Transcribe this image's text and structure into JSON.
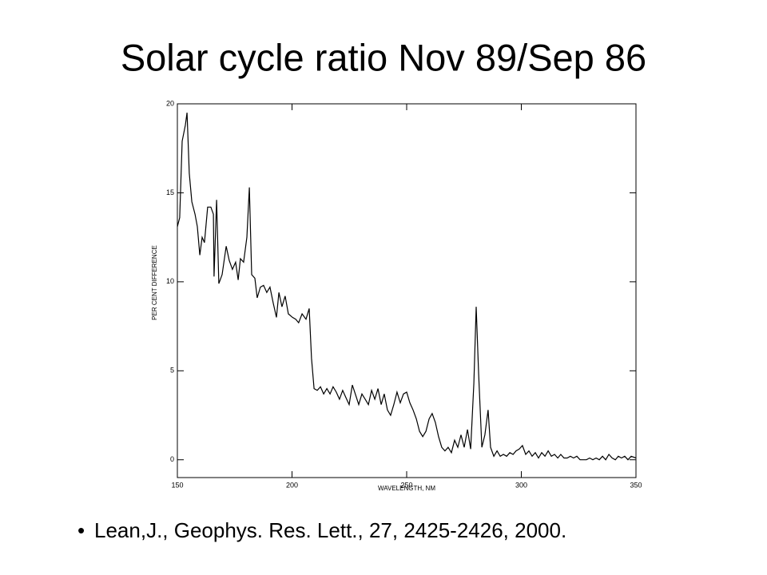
{
  "chart_data": {
    "type": "line",
    "title": "Solar cycle ratio Nov 89/Sep 86",
    "x_label": "WAVELENGTH, NM",
    "y_label": "PER CENT DIFFERENCE",
    "footnote": "Lean,J., Geophys. Res. Lett., 27, 2425-2426, 2000.",
    "xlim": [
      150,
      350
    ],
    "ylim": [
      -1,
      20
    ],
    "xticks": [
      150,
      200,
      250,
      300,
      350
    ],
    "yticks": [
      0,
      5,
      10,
      15,
      20
    ],
    "color": "#000000",
    "x": [
      150,
      151,
      152.1,
      153.5,
      154.2,
      155.2,
      156.3,
      157.7,
      158.7,
      159.8,
      160.8,
      161.8,
      163.2,
      164.6,
      165.7,
      166,
      167.1,
      168.1,
      169.5,
      171.3,
      172.6,
      174,
      175.4,
      176.5,
      177.5,
      178.9,
      180.3,
      181.4,
      182.4,
      183.8,
      184.8,
      186.2,
      187.6,
      189,
      190.4,
      191.8,
      193.2,
      194.3,
      195.6,
      197,
      198.4,
      200.2,
      201.6,
      202.9,
      204.4,
      206.1,
      207.5,
      208.5,
      209.6,
      211,
      212.4,
      213.8,
      215.2,
      216.6,
      217.9,
      219.3,
      220.7,
      222.1,
      223.5,
      224.9,
      226.3,
      227.6,
      229.1,
      230.5,
      231.9,
      233.3,
      234.7,
      236.1,
      237.5,
      238.9,
      240.2,
      241.6,
      243,
      244.4,
      245.8,
      247.2,
      248.6,
      250,
      251.4,
      252.8,
      254.2,
      255.6,
      257,
      258.4,
      259.8,
      261.1,
      262.5,
      263.9,
      265.3,
      266.7,
      268.1,
      269.5,
      270.9,
      272.3,
      273.7,
      275.1,
      276.5,
      277.9,
      279.3,
      280.3,
      281.4,
      282.8,
      284.1,
      285.5,
      286.6,
      288,
      289.4,
      290.8,
      292.2,
      293.6,
      295,
      296.4,
      297.7,
      299.1,
      300.5,
      301.9,
      303.3,
      304.7,
      306.1,
      307.5,
      308.9,
      310.3,
      311.7,
      313.1,
      314.5,
      315.9,
      317.2,
      318.6,
      320,
      321.4,
      322.8,
      324.2,
      325.6,
      327,
      328.4,
      329.8,
      331.2,
      332.6,
      334,
      335.4,
      336.8,
      338.2,
      339.6,
      341,
      342.3,
      343.7,
      345.1,
      346.5,
      347.9,
      350
    ],
    "values": [
      13.1,
      13.6,
      17.9,
      18.8,
      19.5,
      16.1,
      14.5,
      13.8,
      13.1,
      11.5,
      12.5,
      12.2,
      14.2,
      14.2,
      13.8,
      10.3,
      14.6,
      9.9,
      10.4,
      12,
      11.2,
      10.7,
      11.1,
      10.1,
      11.3,
      11.1,
      12.5,
      15.3,
      10.4,
      10.2,
      9.1,
      9.7,
      9.8,
      9.4,
      9.7,
      8.8,
      8.0,
      9.4,
      8.6,
      9.2,
      8.2,
      8.0,
      7.9,
      7.7,
      8.2,
      7.9,
      8.5,
      5.7,
      4.0,
      3.9,
      4.1,
      3.7,
      4.0,
      3.7,
      4.1,
      3.8,
      3.4,
      3.9,
      3.5,
      3.1,
      4.2,
      3.7,
      3.1,
      3.7,
      3.4,
      3.1,
      3.9,
      3.4,
      4.0,
      3.1,
      3.7,
      2.8,
      2.5,
      3.1,
      3.8,
      3.2,
      3.7,
      3.8,
      3.2,
      2.8,
      2.3,
      1.6,
      1.3,
      1.6,
      2.3,
      2.6,
      2.1,
      1.3,
      0.7,
      0.5,
      0.7,
      0.4,
      1.1,
      0.7,
      1.4,
      0.7,
      1.7,
      0.6,
      4.3,
      8.6,
      4.8,
      0.7,
      1.4,
      2.8,
      0.7,
      0.2,
      0.5,
      0.2,
      0.3,
      0.2,
      0.4,
      0.3,
      0.5,
      0.6,
      0.8,
      0.3,
      0.5,
      0.2,
      0.4,
      0.1,
      0.4,
      0.2,
      0.5,
      0.2,
      0.3,
      0.1,
      0.3,
      0.1,
      0.1,
      0.2,
      0.1,
      0.2,
      0,
      0,
      0,
      0.1,
      0,
      0.1,
      0,
      0.2,
      0,
      0.3,
      0.1,
      0,
      0.2,
      0.1,
      0.2,
      0,
      0.2,
      0.1
    ]
  }
}
